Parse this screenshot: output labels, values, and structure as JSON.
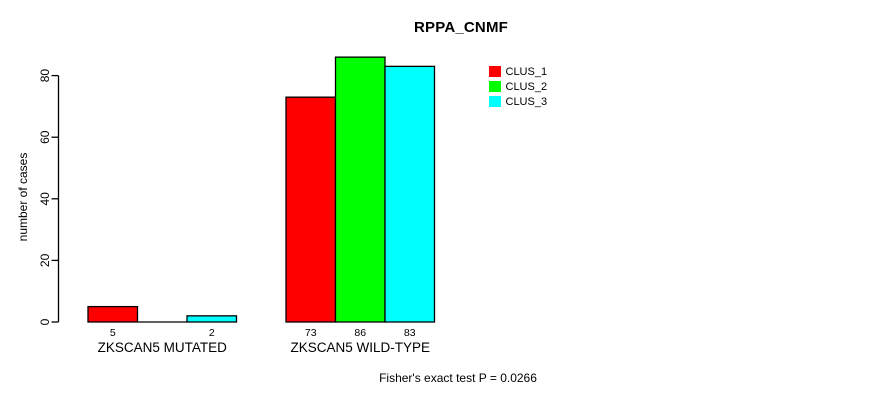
{
  "chart_data": {
    "type": "bar",
    "title": "RPPA_CNMF",
    "xlabel": "",
    "ylabel": "number of cases",
    "ylim": [
      0,
      88
    ],
    "yticks": [
      0,
      20,
      40,
      60,
      80
    ],
    "grid": false,
    "legend_position": "top-right",
    "categories": [
      "ZKSCAN5 MUTATED",
      "ZKSCAN5 WILD-TYPE"
    ],
    "series": [
      {
        "name": "CLUS_1",
        "color": "#ff0000",
        "values": [
          5,
          73
        ]
      },
      {
        "name": "CLUS_2",
        "color": "#00ff00",
        "values": [
          0,
          86
        ]
      },
      {
        "name": "CLUS_3",
        "color": "#00ffff",
        "values": [
          2,
          83
        ]
      }
    ],
    "bar_labels": [
      [
        "5",
        "",
        "2"
      ],
      [
        "73",
        "86",
        "83"
      ]
    ],
    "annotation": "Fisher's exact test P = 0.0266",
    "colors": {
      "axis": "#000000",
      "text": "#000000",
      "background": "#ffffff"
    }
  }
}
